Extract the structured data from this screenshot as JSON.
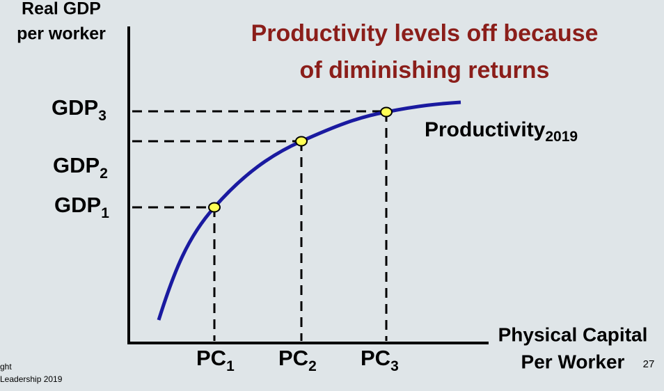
{
  "y_axis_label": [
    "Real GDP",
    "per worker"
  ],
  "title": [
    "Productivity levels off because",
    "of diminishing returns"
  ],
  "y_labels": [
    {
      "text": "GDP",
      "sub": "3"
    },
    {
      "text": "GDP",
      "sub": "2"
    },
    {
      "text": "GDP",
      "sub": "1"
    }
  ],
  "curve_label": {
    "text": "Productivity",
    "sub": "2019"
  },
  "x_labels": [
    {
      "text": "PC",
      "sub": "1"
    },
    {
      "text": "PC",
      "sub": "2"
    },
    {
      "text": "PC",
      "sub": "3"
    }
  ],
  "x_axis_label": [
    "Physical Capital",
    "Per Worker"
  ],
  "page_number": "27",
  "footer": [
    "ght",
    "Leadership 2019"
  ]
}
